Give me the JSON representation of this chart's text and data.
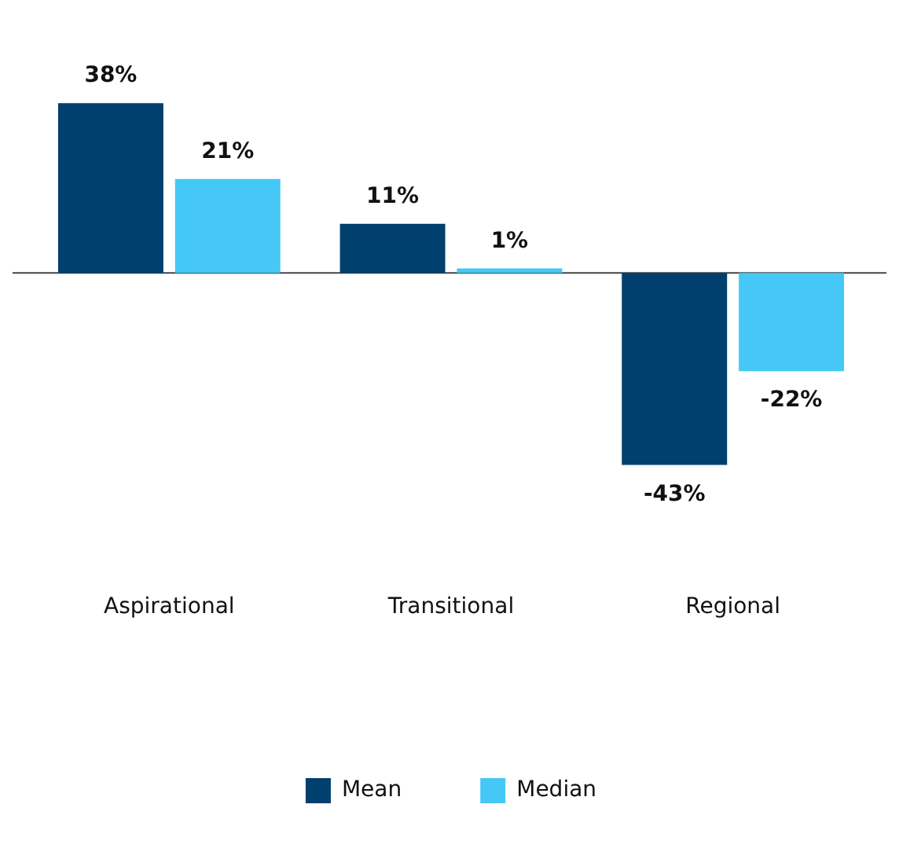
{
  "chart_data": {
    "type": "bar",
    "categories": [
      "Aspirational",
      "Transitional",
      "Regional"
    ],
    "series": [
      {
        "name": "Mean",
        "color": "#003f6e",
        "values": [
          38,
          11,
          -43
        ],
        "value_labels": [
          "38%",
          "11%",
          "-43%"
        ]
      },
      {
        "name": "Median",
        "color": "#45c8f5",
        "values": [
          21,
          1,
          -22
        ],
        "value_labels": [
          "21%",
          "1%",
          "-22%"
        ]
      }
    ],
    "legend": "bottom",
    "grid": false
  }
}
